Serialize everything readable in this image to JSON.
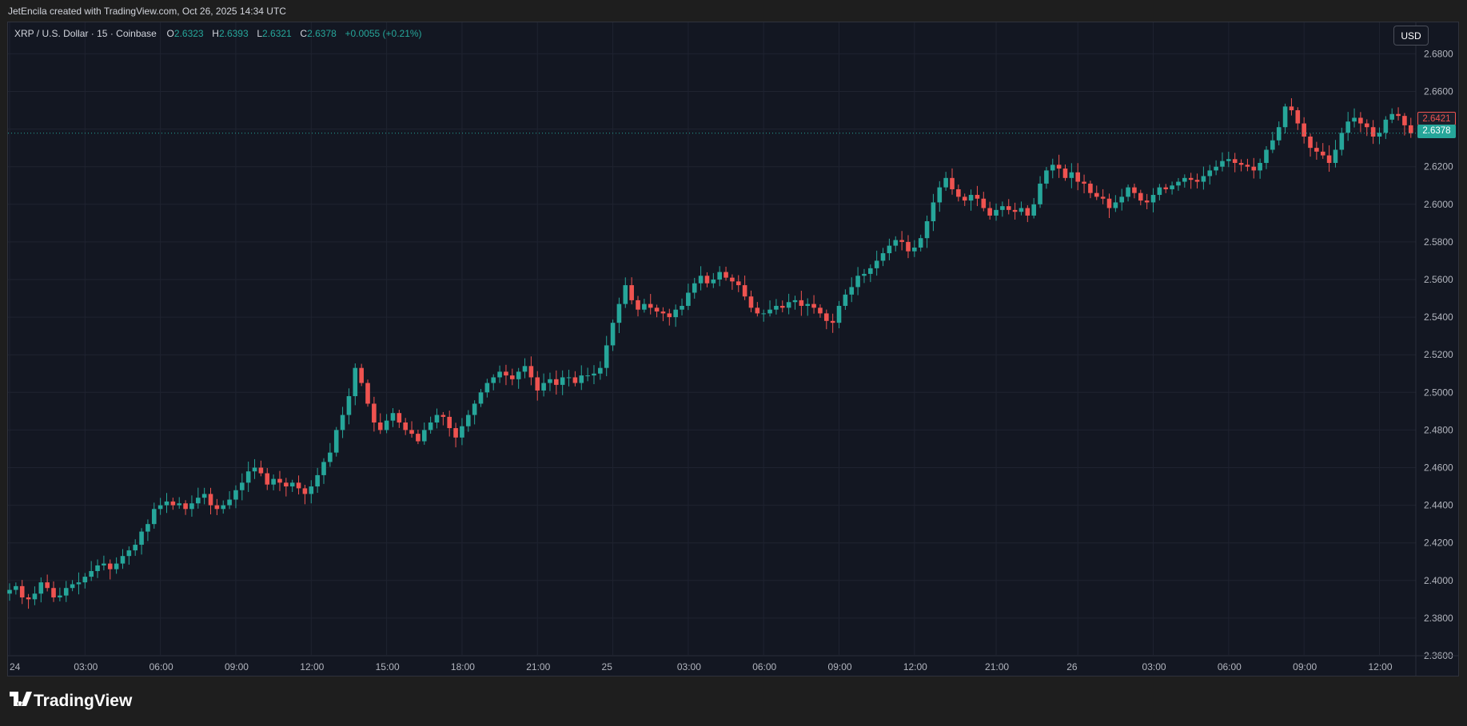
{
  "header": {
    "attribution": "JetEncila created with TradingView.com, Oct 26, 2025 14:34 UTC"
  },
  "symbol": {
    "name": "XRP / U.S. Dollar · 15 · Coinbase",
    "open_label": "O",
    "open": "2.6323",
    "high_label": "H",
    "high": "2.6393",
    "low_label": "L",
    "low": "2.6321",
    "close_label": "C",
    "close": "2.6378",
    "change": "+0.0055 (+0.21%)"
  },
  "currency_button": "USD",
  "price_tags": {
    "last": "2.6378",
    "prev": "2.6421"
  },
  "brand": "TradingView",
  "colors": {
    "up": "#26a69a",
    "down": "#ef5350",
    "background": "#131722",
    "grid": "#1f2330",
    "text": "#b2b5be"
  },
  "chart_data": {
    "type": "candlestick",
    "symbol": "XRP / U.S. Dollar",
    "interval": "15",
    "exchange": "Coinbase",
    "ylim": [
      2.36,
      2.68
    ],
    "y_ticks": [
      "2.6800",
      "2.6600",
      "2.6400",
      "2.6200",
      "2.6000",
      "2.5800",
      "2.5600",
      "2.5400",
      "2.5200",
      "2.5000",
      "2.4800",
      "2.4600",
      "2.4400",
      "2.4200",
      "2.4000",
      "2.3800",
      "2.3600"
    ],
    "x_ticks": [
      "24",
      "03:00",
      "06:00",
      "09:00",
      "12:00",
      "15:00",
      "18:00",
      "21:00",
      "25",
      "03:00",
      "06:00",
      "09:00",
      "12:00",
      "21:00",
      "26",
      "03:00",
      "06:00",
      "09:00",
      "12:00"
    ],
    "x_tick_index": [
      0,
      12,
      24,
      36,
      48,
      60,
      72,
      84,
      96,
      108,
      120,
      132,
      144,
      157,
      170,
      182,
      194,
      206,
      218
    ],
    "current_price": 2.6378,
    "closes": [
      2.395,
      2.397,
      2.391,
      2.39,
      2.393,
      2.399,
      2.396,
      2.391,
      2.392,
      2.396,
      2.398,
      2.399,
      2.402,
      2.405,
      2.408,
      2.409,
      2.406,
      2.409,
      2.413,
      2.416,
      2.419,
      2.426,
      2.43,
      2.438,
      2.44,
      2.442,
      2.44,
      2.441,
      2.438,
      2.441,
      2.444,
      2.446,
      2.44,
      2.438,
      2.44,
      2.443,
      2.448,
      2.452,
      2.458,
      2.46,
      2.457,
      2.451,
      2.454,
      2.452,
      2.45,
      2.452,
      2.449,
      2.446,
      2.45,
      2.456,
      2.463,
      2.468,
      2.48,
      2.488,
      2.498,
      2.513,
      2.505,
      2.494,
      2.484,
      2.48,
      2.485,
      2.489,
      2.484,
      2.48,
      2.478,
      2.474,
      2.48,
      2.484,
      2.488,
      2.487,
      2.481,
      2.476,
      2.482,
      2.488,
      2.494,
      2.5,
      2.505,
      2.508,
      2.511,
      2.509,
      2.507,
      2.511,
      2.514,
      2.508,
      2.501,
      2.505,
      2.507,
      2.504,
      2.508,
      2.508,
      2.505,
      2.509,
      2.509,
      2.51,
      2.513,
      2.525,
      2.537,
      2.547,
      2.557,
      2.549,
      2.544,
      2.547,
      2.545,
      2.543,
      2.542,
      2.54,
      2.544,
      2.546,
      2.553,
      2.558,
      2.562,
      2.558,
      2.56,
      2.564,
      2.561,
      2.559,
      2.557,
      2.551,
      2.545,
      2.542,
      2.542,
      2.544,
      2.546,
      2.545,
      2.548,
      2.549,
      2.546,
      2.547,
      2.545,
      2.542,
      2.538,
      2.537,
      2.546,
      2.552,
      2.556,
      2.562,
      2.563,
      2.566,
      2.57,
      2.574,
      2.578,
      2.581,
      2.58,
      2.575,
      2.577,
      2.582,
      2.591,
      2.601,
      2.609,
      2.614,
      2.608,
      2.604,
      2.602,
      2.605,
      2.603,
      2.598,
      2.594,
      2.597,
      2.599,
      2.597,
      2.596,
      2.598,
      2.594,
      2.6,
      2.611,
      2.618,
      2.621,
      2.619,
      2.614,
      2.617,
      2.612,
      2.611,
      2.606,
      2.604,
      2.603,
      2.598,
      2.601,
      2.604,
      2.609,
      2.606,
      2.602,
      2.601,
      2.605,
      2.609,
      2.608,
      2.61,
      2.612,
      2.614,
      2.613,
      2.612,
      2.615,
      2.618,
      2.62,
      2.623,
      2.624,
      2.622,
      2.621,
      2.62,
      2.618,
      2.622,
      2.629,
      2.634,
      2.641,
      2.652,
      2.65,
      2.643,
      2.636,
      2.63,
      2.628,
      2.626,
      2.622,
      2.629,
      2.638,
      2.644,
      2.646,
      2.643,
      2.641,
      2.636,
      2.638,
      2.645,
      2.648,
      2.647,
      2.642,
      2.6378
    ]
  }
}
